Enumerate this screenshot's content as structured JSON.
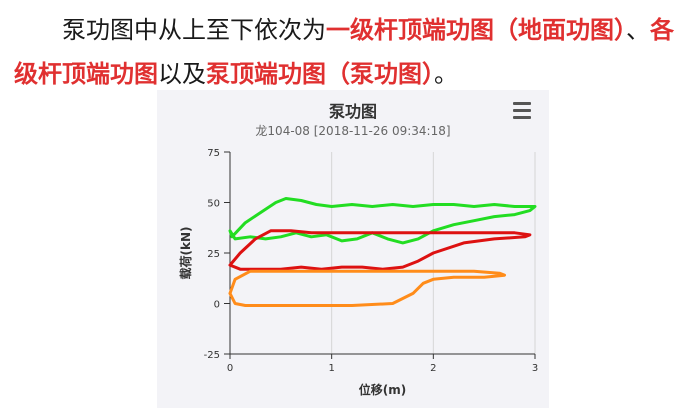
{
  "caption": {
    "text_1": "泵功图中从上至下依次为",
    "text_2": "一级杆顶端功图（地面功图）",
    "text_3": "、",
    "text_4": "各级杆顶端功图",
    "text_5": "以及",
    "text_6": "泵顶端功图（泵功图）",
    "text_7": "。"
  },
  "chart": {
    "menu_icon": "hamburger-menu-icon"
  },
  "colors": {
    "green": "#22dd22",
    "red": "#dd1111",
    "orange": "#ff8c1a",
    "highlight": "#e03030"
  },
  "chart_data": {
    "type": "line",
    "title": "泵功图",
    "subtitle": "龙104-08 [2018-11-26 09:34:18]",
    "xlabel": "位移(m)",
    "ylabel": "载荷(kN)",
    "xlim": [
      0,
      3
    ],
    "ylim": [
      -25,
      75
    ],
    "xticks": [
      "0",
      "1",
      "2",
      "3"
    ],
    "yticks": [
      "75",
      "50",
      "25",
      "0",
      "-25"
    ],
    "grid": "vertical",
    "series": [
      {
        "color": "#22dd22",
        "x": [
          0.02,
          0.15,
          0.3,
          0.45,
          0.55,
          0.7,
          0.85,
          1.0,
          1.2,
          1.4,
          1.6,
          1.8,
          2.0,
          2.2,
          2.4,
          2.6,
          2.8,
          2.95,
          3.0,
          2.95,
          2.8,
          2.6,
          2.4,
          2.2,
          2.0,
          1.85,
          1.7,
          1.55,
          1.4,
          1.25,
          1.1,
          0.95,
          0.8,
          0.65,
          0.5,
          0.35,
          0.2,
          0.05,
          0.0,
          0.02
        ],
        "y": [
          33,
          40,
          45,
          50,
          52,
          51,
          49,
          48,
          49,
          48,
          49,
          48,
          49,
          49,
          48,
          49,
          48,
          48,
          48,
          46,
          44,
          43,
          41,
          39,
          36,
          32,
          30,
          32,
          35,
          32,
          31,
          34,
          33,
          35,
          33,
          32,
          33,
          32,
          36,
          33
        ]
      },
      {
        "color": "#dd1111",
        "x": [
          0.0,
          0.1,
          0.25,
          0.4,
          0.6,
          0.8,
          1.0,
          1.3,
          1.6,
          1.9,
          2.2,
          2.5,
          2.8,
          2.95,
          2.9,
          2.6,
          2.3,
          2.0,
          1.85,
          1.7,
          1.5,
          1.3,
          1.1,
          0.9,
          0.7,
          0.5,
          0.3,
          0.1,
          0.0
        ],
        "y": [
          19,
          25,
          32,
          36,
          36,
          35,
          35,
          35,
          35,
          35,
          35,
          35,
          35,
          34,
          33,
          32,
          30,
          25,
          21,
          18,
          17,
          18,
          18,
          17,
          18,
          17,
          17,
          17,
          19
        ]
      },
      {
        "color": "#ff8c1a",
        "x": [
          0.0,
          0.05,
          0.2,
          0.5,
          1.0,
          1.5,
          2.0,
          2.4,
          2.65,
          2.7,
          2.5,
          2.2,
          2.0,
          1.9,
          1.8,
          1.6,
          1.2,
          0.8,
          0.4,
          0.15,
          0.05,
          0.0
        ],
        "y": [
          5,
          12,
          16,
          16,
          16,
          16,
          16,
          16,
          15,
          14,
          13,
          13,
          12,
          10,
          5,
          0,
          -1,
          -1,
          -1,
          -1,
          0,
          5
        ]
      }
    ]
  }
}
